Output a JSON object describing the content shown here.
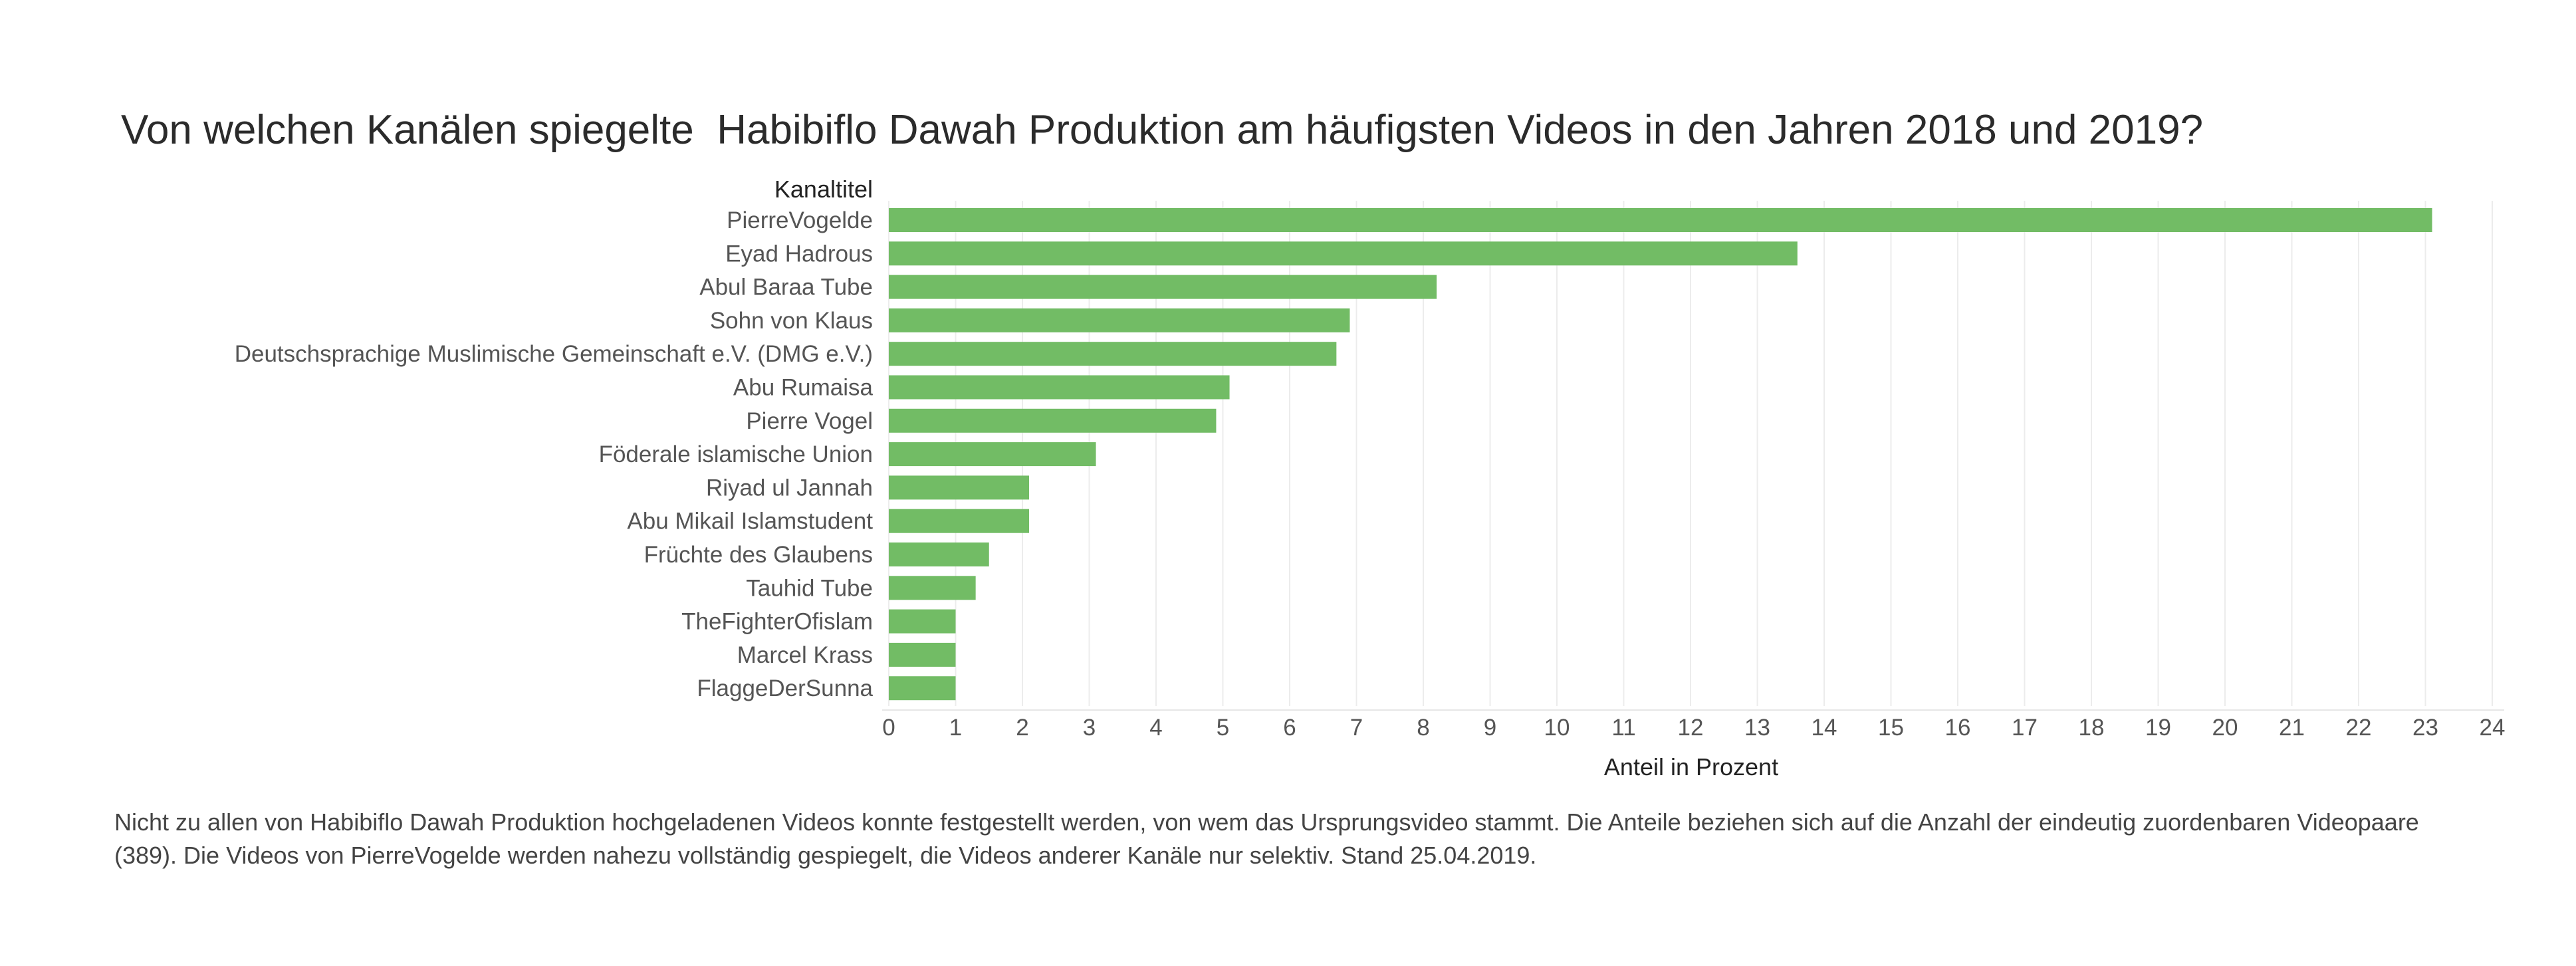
{
  "title": "Von welchen Kanälen spiegelte  Habibiflo Dawah Produktion am häufigsten Videos in den Jahren 2018 und 2019?",
  "footnote": "Nicht zu allen von Habibiflo Dawah Produktion hochgeladenen Videos konnte festgestellt werden, von wem das Ursprungsvideo stammt. Die Anteile beziehen sich auf die Anzahl der eindeutig zuordenbaren Videopaare (389). Die Videos von PierreVogelde werden nahezu vollständig gespiegelt, die Videos anderer Kanäle nur selektiv. Stand 25.04.2019.",
  "chart_data": {
    "type": "bar",
    "orientation": "horizontal",
    "ylabel": "Kanaltitel",
    "xlabel": "Anteil in Prozent",
    "categories": [
      "PierreVogelde",
      "Eyad Hadrous",
      "Abul Baraa Tube",
      "Sohn von Klaus",
      "Deutschsprachige Muslimische Gemeinschaft e.V. (DMG e.V.)",
      "Abu Rumaisa",
      "Pierre Vogel",
      "Föderale islamische Union",
      "Riyad ul Jannah",
      "Abu Mikail Islamstudent",
      "Früchte des Glaubens",
      "Tauhid Tube",
      "TheFighterOfislam",
      "Marcel Krass",
      "FlaggeDerSunna"
    ],
    "values": [
      23.1,
      13.6,
      8.2,
      6.9,
      6.7,
      5.1,
      4.9,
      3.1,
      2.1,
      2.1,
      1.5,
      1.3,
      1.0,
      1.0,
      1.0
    ],
    "xlim": [
      0,
      24
    ],
    "xticks": [
      0,
      1,
      2,
      3,
      4,
      5,
      6,
      7,
      8,
      9,
      10,
      11,
      12,
      13,
      14,
      15,
      16,
      17,
      18,
      19,
      20,
      21,
      22,
      23,
      24
    ],
    "grid": true,
    "bar_color": "#72bc65"
  }
}
